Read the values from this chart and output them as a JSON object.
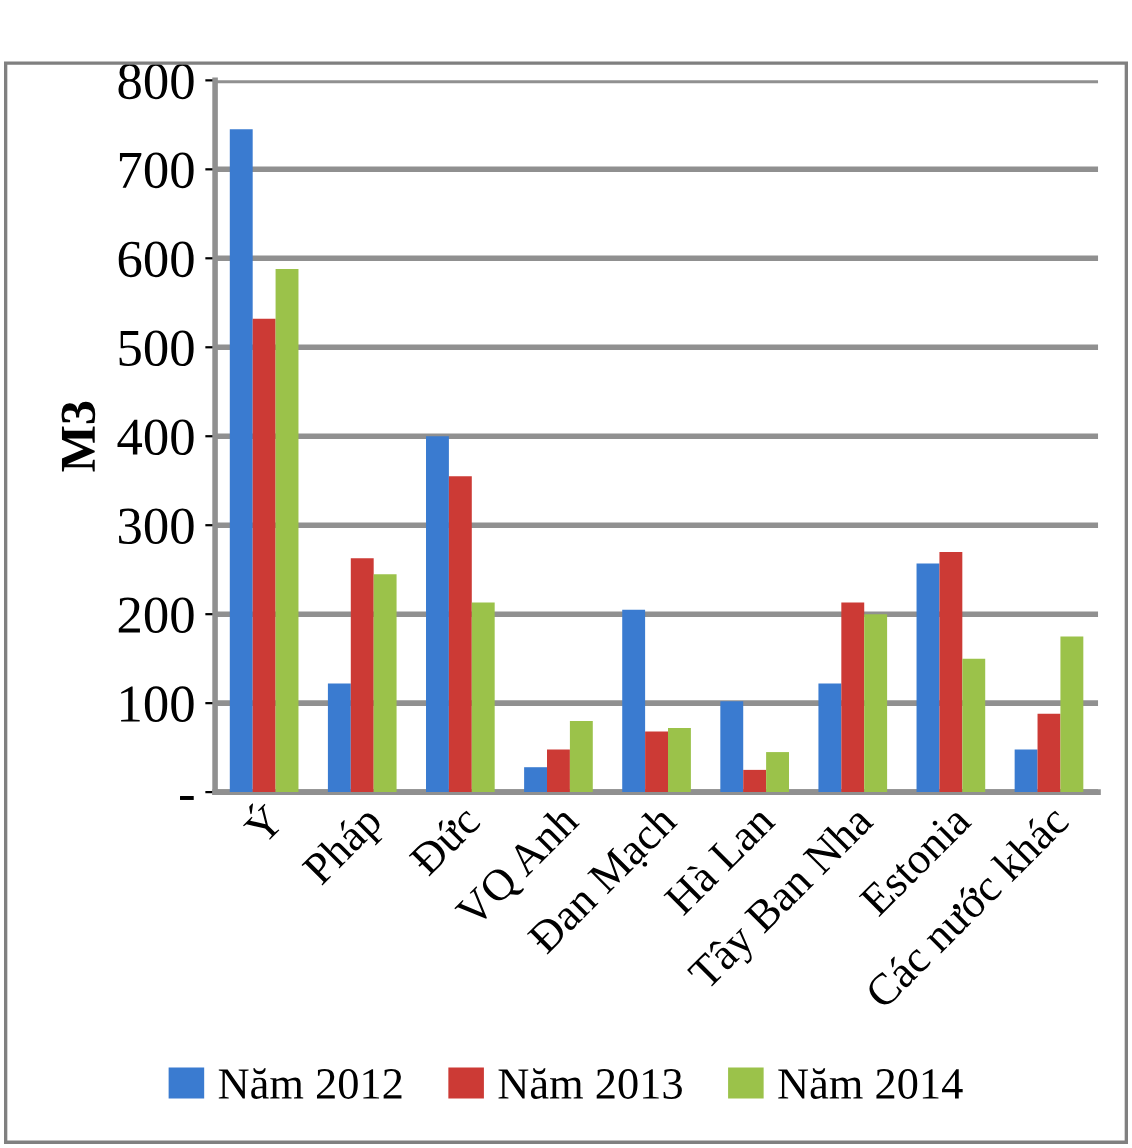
{
  "chart_data": {
    "type": "bar",
    "ylabel": "M3",
    "categories": [
      "Ý",
      "Pháp",
      "Đức",
      "VQ Anh",
      "Đan Mạch",
      "Hà Lan",
      "Tây Ban Nha",
      "Estonia",
      "Các nước khác"
    ],
    "series": [
      {
        "name": "Năm 2012",
        "color": "#3a7bd0",
        "values": [
          745,
          122,
          400,
          28,
          205,
          102,
          122,
          257,
          48
        ]
      },
      {
        "name": "Năm 2013",
        "color": "#cc3a35",
        "values": [
          532,
          263,
          355,
          48,
          68,
          25,
          213,
          270,
          88
        ]
      },
      {
        "name": "Năm 2014",
        "color": "#9bc24a",
        "values": [
          588,
          245,
          213,
          80,
          72,
          45,
          200,
          150,
          175
        ]
      }
    ],
    "ylim": [
      0,
      800
    ],
    "yticks": [
      {
        "value": 0,
        "label": "-"
      },
      100,
      200,
      300,
      400,
      500,
      600,
      700,
      800
    ],
    "grid": "y",
    "legend": "bottom"
  }
}
